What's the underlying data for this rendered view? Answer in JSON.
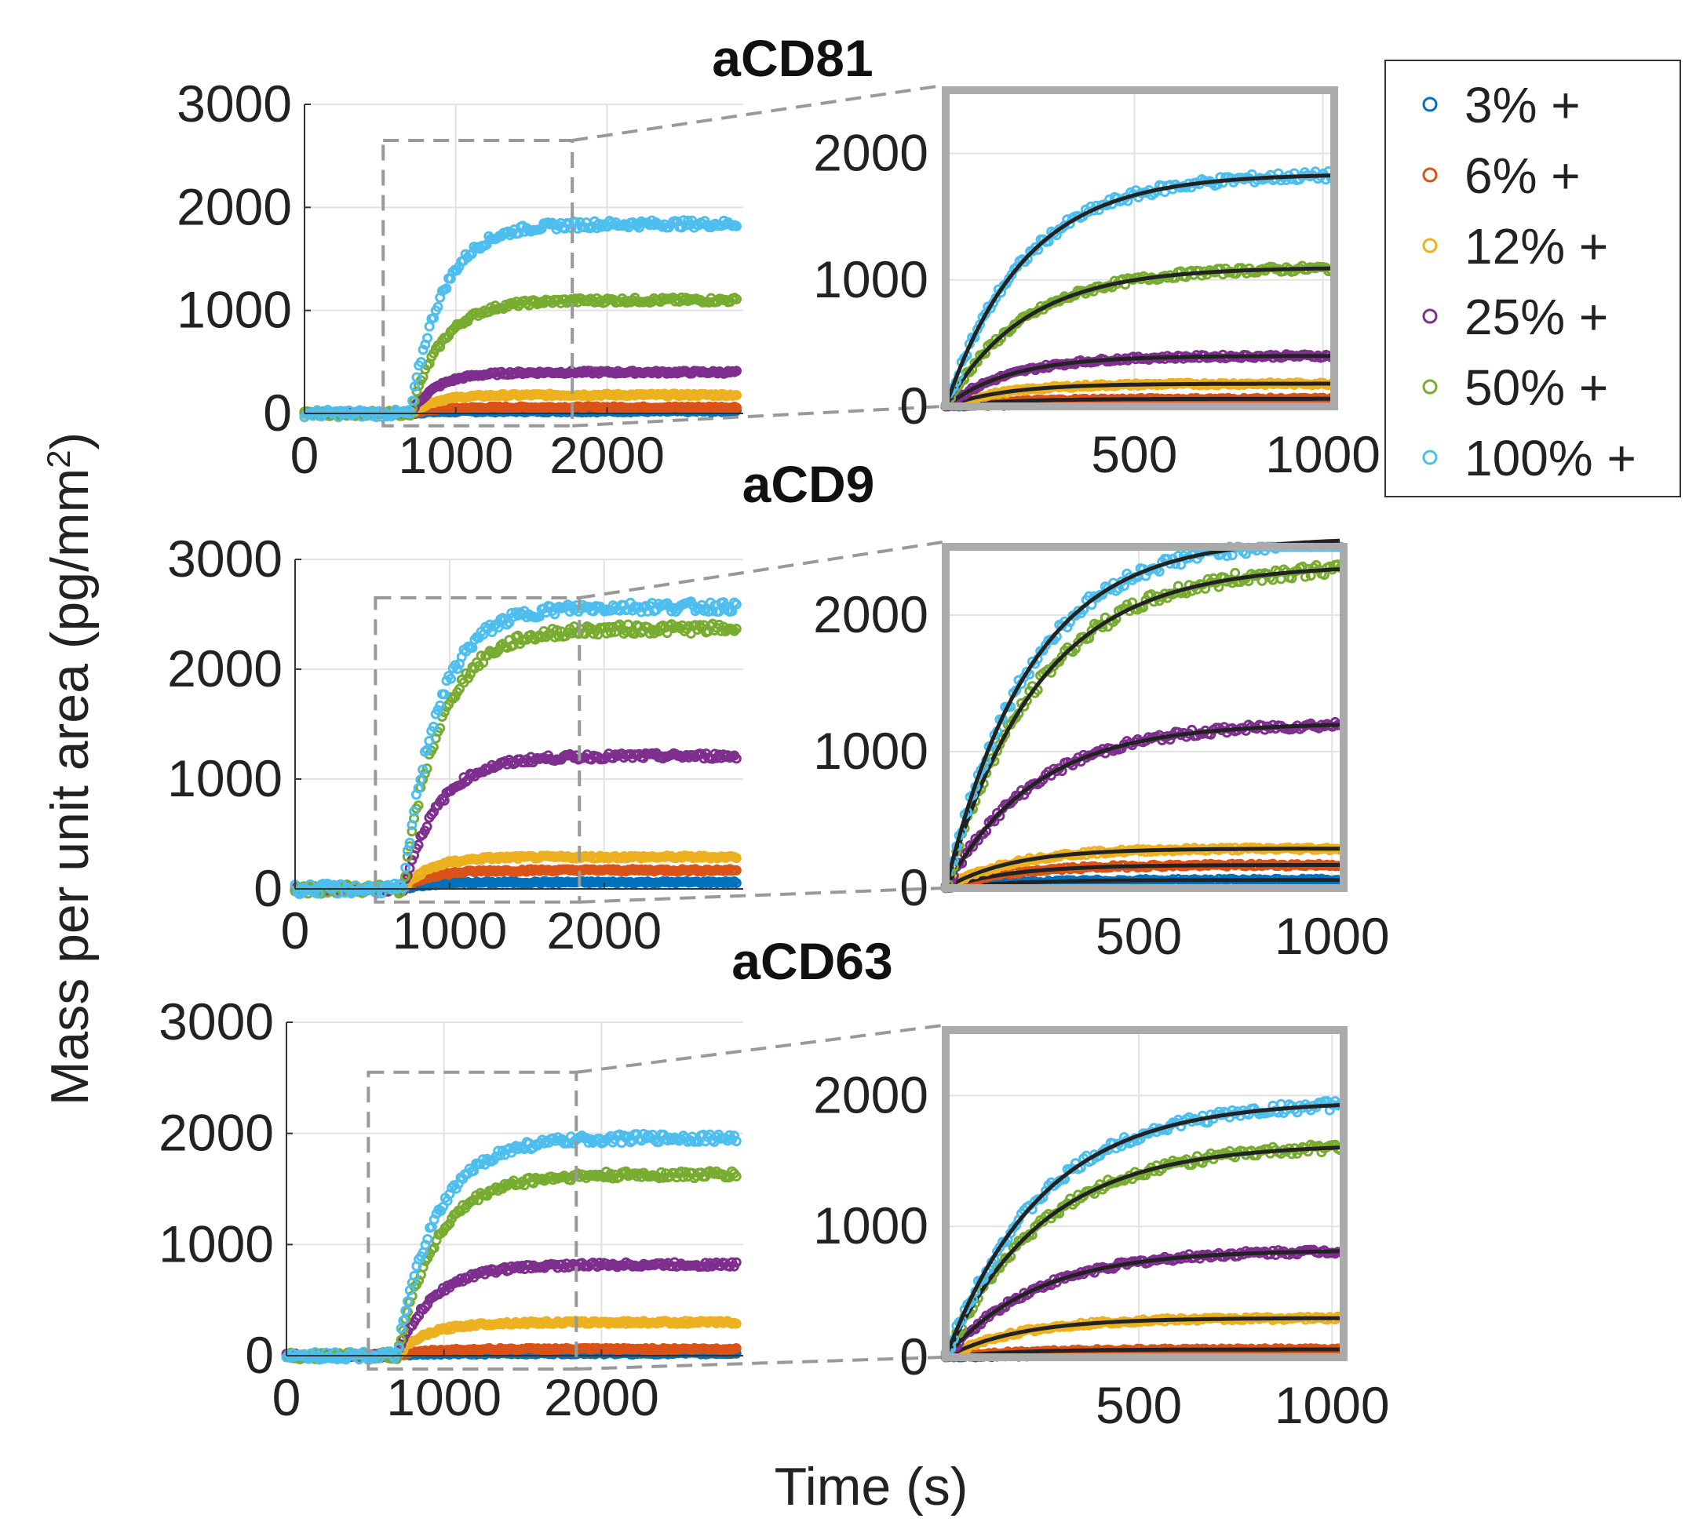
{
  "chart_data": {
    "type": "scatter",
    "y_axis_label": "Mass per unit area (pg/mm",
    "y_axis_label_sup": "2",
    "y_axis_label_end": ")",
    "x_axis_label": "Time (s)",
    "colors": {
      "3% +": "#0072BD",
      "6% +": "#D95319",
      "12% +": "#EDB120",
      "25% +": "#7E2F8E",
      "50% +": "#77AC30",
      "100% +": "#4DBEEE",
      "fit": "#222222",
      "zoom_box": "#999999",
      "inset_frame": "#aaaaaa"
    },
    "legend": {
      "position": "top-right",
      "entries": [
        "3% +",
        "6% +",
        "12% +",
        "25% +",
        "50% +",
        "100% +"
      ]
    },
    "panels": [
      {
        "title": "aCD81",
        "main": {
          "xlim": [
            0,
            2900
          ],
          "ylim": [
            0,
            3000
          ],
          "x_ticks": [
            "0",
            "1000",
            "2000"
          ],
          "y_ticks": [
            "0",
            "1000",
            "2000",
            "3000"
          ],
          "injection_time": 700,
          "zoom_window": {
            "x": [
              520,
              1770
            ],
            "y": [
              -120,
              2650
            ]
          },
          "series": [
            {
              "name": "3% +",
              "plateau": 20,
              "tau": 160
            },
            {
              "name": "6% +",
              "plateau": 60,
              "tau": 160
            },
            {
              "name": "12% +",
              "plateau": 180,
              "tau": 160
            },
            {
              "name": "25% +",
              "plateau": 400,
              "tau": 170
            },
            {
              "name": "50% +",
              "plateau": 1100,
              "tau": 210
            },
            {
              "name": "100% +",
              "plateau": 1840,
              "tau": 210
            }
          ]
        },
        "inset": {
          "xlim": [
            0,
            1030
          ],
          "ylim": [
            0,
            2500
          ],
          "x_ticks": [
            "500",
            "1000"
          ],
          "y_ticks": [
            "0",
            "1000",
            "2000"
          ]
        }
      },
      {
        "title": "aCD9",
        "main": {
          "xlim": [
            0,
            2900
          ],
          "ylim": [
            0,
            3000
          ],
          "x_ticks": [
            "0",
            "1000",
            "2000"
          ],
          "y_ticks": [
            "0",
            "1000",
            "2000",
            "3000"
          ],
          "injection_time": 700,
          "zoom_window": {
            "x": [
              520,
              1840
            ],
            "y": [
              -120,
              2650
            ]
          },
          "series": [
            {
              "name": "3% +",
              "plateau": 60,
              "tau": 170
            },
            {
              "name": "6% +",
              "plateau": 170,
              "tau": 170
            },
            {
              "name": "12% +",
              "plateau": 290,
              "tau": 170
            },
            {
              "name": "25% +",
              "plateau": 1210,
              "tau": 230
            },
            {
              "name": "50% +",
              "plateau": 2370,
              "tau": 240
            },
            {
              "name": "100% +",
              "plateau": 2570,
              "tau": 220
            }
          ]
        },
        "inset": {
          "xlim": [
            0,
            1030
          ],
          "ylim": [
            0,
            2500
          ],
          "x_ticks": [
            "500",
            "1000"
          ],
          "y_ticks": [
            "0",
            "1000",
            "2000"
          ]
        }
      },
      {
        "title": "aCD63",
        "main": {
          "xlim": [
            0,
            2900
          ],
          "ylim": [
            0,
            3000
          ],
          "x_ticks": [
            "0",
            "1000",
            "2000"
          ],
          "y_ticks": [
            "0",
            "1000",
            "2000",
            "3000"
          ],
          "injection_time": 700,
          "zoom_window": {
            "x": [
              520,
              1840
            ],
            "y": [
              -120,
              2550
            ]
          },
          "series": [
            {
              "name": "3% +",
              "plateau": 20,
              "tau": 170
            },
            {
              "name": "6% +",
              "plateau": 60,
              "tau": 170
            },
            {
              "name": "12% +",
              "plateau": 300,
              "tau": 190
            },
            {
              "name": "25% +",
              "plateau": 820,
              "tau": 230
            },
            {
              "name": "50% +",
              "plateau": 1630,
              "tau": 250
            },
            {
              "name": "100% +",
              "plateau": 1960,
              "tau": 250
            }
          ]
        },
        "inset": {
          "xlim": [
            0,
            1030
          ],
          "ylim": [
            0,
            2500
          ],
          "x_ticks": [
            "500",
            "1000"
          ],
          "y_ticks": [
            "0",
            "1000",
            "2000"
          ]
        }
      }
    ]
  }
}
